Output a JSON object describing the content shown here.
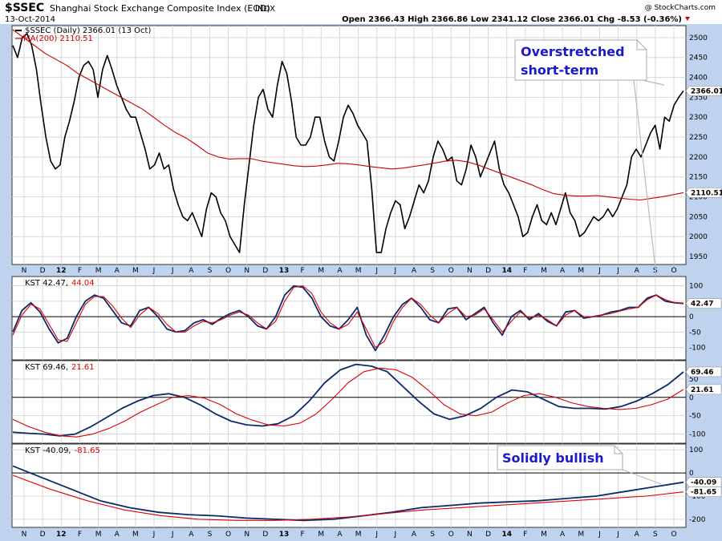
{
  "header": {
    "symbol": "$SSEC",
    "index_name": "Shanghai Stock Exchange Composite Index (EOD)",
    "exchange": "INDX",
    "date": "13-Oct-2014",
    "watermark": "@ StockCharts.com",
    "ohlc": "Open 2366.43  High 2366.86  Low 2341.12  Close 2366.01  Chg -8.53 (-0.36%)"
  },
  "colors": {
    "frame": "#bfd3ef",
    "price": "#000000",
    "ma": "#cc0000",
    "kst": "#0a2a6a",
    "signal": "#dd0000",
    "note": "#1a1acc",
    "grid": "#d8d8d8"
  },
  "x_axis_labels": [
    "N",
    "D",
    "12",
    "F",
    "M",
    "A",
    "M",
    "J",
    "J",
    "A",
    "S",
    "O",
    "N",
    "D",
    "13",
    "F",
    "M",
    "A",
    "M",
    "J",
    "J",
    "A",
    "S",
    "O",
    "N",
    "D",
    "14",
    "F",
    "M",
    "A",
    "M",
    "J",
    "J",
    "A",
    "S",
    "O"
  ],
  "chart_data": [
    {
      "type": "line",
      "panel": "price",
      "legend": [
        "$SSEC (Daily) 2366.01 (13 Oct)",
        "MA(200) 2110.51"
      ],
      "last_value_label": "2366.01",
      "ma_value_label": "2110.51",
      "ylim": [
        1930,
        2530
      ],
      "y_ticks": [
        1950,
        2000,
        2050,
        2100,
        2150,
        2200,
        2250,
        2300,
        2350,
        2400,
        2450,
        2500
      ],
      "series": [
        {
          "name": "$SSEC (Daily)",
          "values": [
            2480,
            2450,
            2500,
            2510,
            2480,
            2420,
            2330,
            2250,
            2190,
            2170,
            2180,
            2250,
            2290,
            2340,
            2400,
            2430,
            2440,
            2420,
            2350,
            2420,
            2455,
            2420,
            2380,
            2350,
            2320,
            2300,
            2300,
            2260,
            2220,
            2170,
            2180,
            2210,
            2170,
            2180,
            2120,
            2080,
            2050,
            2040,
            2060,
            2030,
            2000,
            2070,
            2110,
            2100,
            2060,
            2040,
            2000,
            1980,
            1960,
            2080,
            2180,
            2280,
            2350,
            2370,
            2320,
            2300,
            2380,
            2440,
            2410,
            2340,
            2250,
            2230,
            2230,
            2250,
            2300,
            2300,
            2240,
            2200,
            2190,
            2240,
            2300,
            2330,
            2310,
            2280,
            2260,
            2240,
            2120,
            1960,
            1960,
            2020,
            2060,
            2090,
            2080,
            2020,
            2050,
            2090,
            2130,
            2110,
            2140,
            2200,
            2240,
            2220,
            2190,
            2200,
            2140,
            2130,
            2170,
            2230,
            2200,
            2150,
            2180,
            2210,
            2240,
            2170,
            2130,
            2110,
            2080,
            2050,
            2000,
            2010,
            2050,
            2080,
            2040,
            2030,
            2060,
            2030,
            2070,
            2110,
            2060,
            2040,
            2000,
            2010,
            2030,
            2050,
            2040,
            2050,
            2070,
            2050,
            2070,
            2100,
            2130,
            2200,
            2220,
            2200,
            2230,
            2260,
            2280,
            2220,
            2300,
            2290,
            2330,
            2350,
            2366.01
          ]
        },
        {
          "name": "MA(200)",
          "values": [
            2520,
            2500,
            2480,
            2460,
            2445,
            2430,
            2410,
            2395,
            2380,
            2365,
            2350,
            2335,
            2320,
            2300,
            2280,
            2262,
            2248,
            2230,
            2210,
            2200,
            2195,
            2196,
            2196,
            2190,
            2186,
            2182,
            2178,
            2176,
            2177,
            2180,
            2184,
            2183,
            2180,
            2176,
            2173,
            2170,
            2172,
            2176,
            2180,
            2185,
            2190,
            2192,
            2188,
            2180,
            2170,
            2160,
            2150,
            2140,
            2130,
            2118,
            2108,
            2104,
            2102,
            2102,
            2103,
            2100,
            2097,
            2094,
            2092,
            2096,
            2100,
            2105,
            2110.51
          ]
        }
      ]
    },
    {
      "type": "line",
      "panel": "kst_short",
      "legend": [
        "KST 42.47,",
        "44.04"
      ],
      "value_labels": [
        "42.47"
      ],
      "ylim": [
        -140,
        130
      ],
      "y_ticks": [
        100,
        50,
        0,
        -50,
        -100
      ],
      "series": [
        {
          "name": "KST 42.47",
          "values": [
            -50,
            20,
            45,
            15,
            -40,
            -85,
            -70,
            0,
            50,
            70,
            60,
            20,
            -20,
            -30,
            20,
            30,
            0,
            -40,
            -50,
            -45,
            -20,
            -10,
            -25,
            -5,
            10,
            20,
            0,
            -30,
            -40,
            0,
            70,
            100,
            95,
            60,
            0,
            -30,
            -40,
            -10,
            30,
            -60,
            -110,
            -60,
            0,
            40,
            60,
            30,
            -10,
            -20,
            25,
            30,
            -10,
            10,
            30,
            -20,
            -60,
            0,
            20,
            -10,
            10,
            -15,
            -30,
            15,
            20,
            -5,
            0,
            5,
            15,
            20,
            30,
            30,
            60,
            70,
            50,
            45,
            42.47
          ]
        },
        {
          "name": "Signal 44.04",
          "values": [
            -60,
            5,
            40,
            25,
            -25,
            -75,
            -80,
            -20,
            40,
            65,
            65,
            35,
            -5,
            -35,
            5,
            30,
            10,
            -25,
            -50,
            -50,
            -30,
            -15,
            -20,
            -10,
            5,
            15,
            5,
            -20,
            -40,
            -15,
            50,
            95,
            100,
            75,
            15,
            -20,
            -40,
            -25,
            15,
            -40,
            -100,
            -80,
            -15,
            30,
            60,
            40,
            5,
            -20,
            10,
            30,
            0,
            5,
            25,
            -10,
            -50,
            -15,
            15,
            -5,
            5,
            -10,
            -30,
            5,
            20,
            0,
            0,
            5,
            10,
            18,
            25,
            30,
            55,
            70,
            55,
            45,
            44.04
          ]
        }
      ]
    },
    {
      "type": "line",
      "panel": "kst_medium",
      "legend": [
        "KST 69.46,",
        "21.61"
      ],
      "value_labels": [
        "69.46",
        "21.61"
      ],
      "ylim": [
        -125,
        100
      ],
      "y_ticks": [
        50,
        0,
        -50,
        -100
      ],
      "series": [
        {
          "name": "KST 69.46",
          "values": [
            -95,
            -98,
            -100,
            -105,
            -100,
            -80,
            -55,
            -30,
            -10,
            5,
            10,
            0,
            -20,
            -45,
            -65,
            -75,
            -78,
            -72,
            -50,
            -10,
            40,
            75,
            90,
            85,
            70,
            30,
            -10,
            -45,
            -60,
            -50,
            -30,
            0,
            20,
            15,
            -5,
            -25,
            -30,
            -30,
            -32,
            -25,
            -10,
            10,
            35,
            69.46
          ]
        },
        {
          "name": "Signal 21.61",
          "values": [
            -60,
            -80,
            -95,
            -105,
            -108,
            -100,
            -85,
            -65,
            -40,
            -20,
            0,
            5,
            -2,
            -20,
            -45,
            -62,
            -75,
            -78,
            -70,
            -45,
            -5,
            40,
            70,
            80,
            75,
            55,
            20,
            -20,
            -45,
            -50,
            -40,
            -15,
            5,
            10,
            0,
            -15,
            -25,
            -30,
            -33,
            -30,
            -20,
            -5,
            21.61
          ]
        }
      ]
    },
    {
      "type": "line",
      "panel": "kst_long",
      "legend": [
        "KST -40.09,",
        "-81.65"
      ],
      "value_labels": [
        "-40.09",
        "-81.65"
      ],
      "ylim": [
        -235,
        125
      ],
      "y_ticks": [
        100,
        0,
        -100,
        -200
      ],
      "series": [
        {
          "name": "KST -40.09",
          "values": [
            30,
            -20,
            -70,
            -120,
            -150,
            -170,
            -180,
            -185,
            -195,
            -200,
            -205,
            -200,
            -185,
            -170,
            -150,
            -140,
            -130,
            -125,
            -120,
            -110,
            -100,
            -80,
            -60,
            -40.09
          ]
        },
        {
          "name": "Signal -81.65",
          "values": [
            -10,
            -70,
            -120,
            -160,
            -185,
            -200,
            -205,
            -205,
            -200,
            -190,
            -175,
            -160,
            -150,
            -140,
            -130,
            -120,
            -110,
            -100,
            -81.65
          ]
        }
      ]
    }
  ],
  "annotations": {
    "overstretched": "Overstretched short-term",
    "bullish": "Solidly bullish"
  }
}
